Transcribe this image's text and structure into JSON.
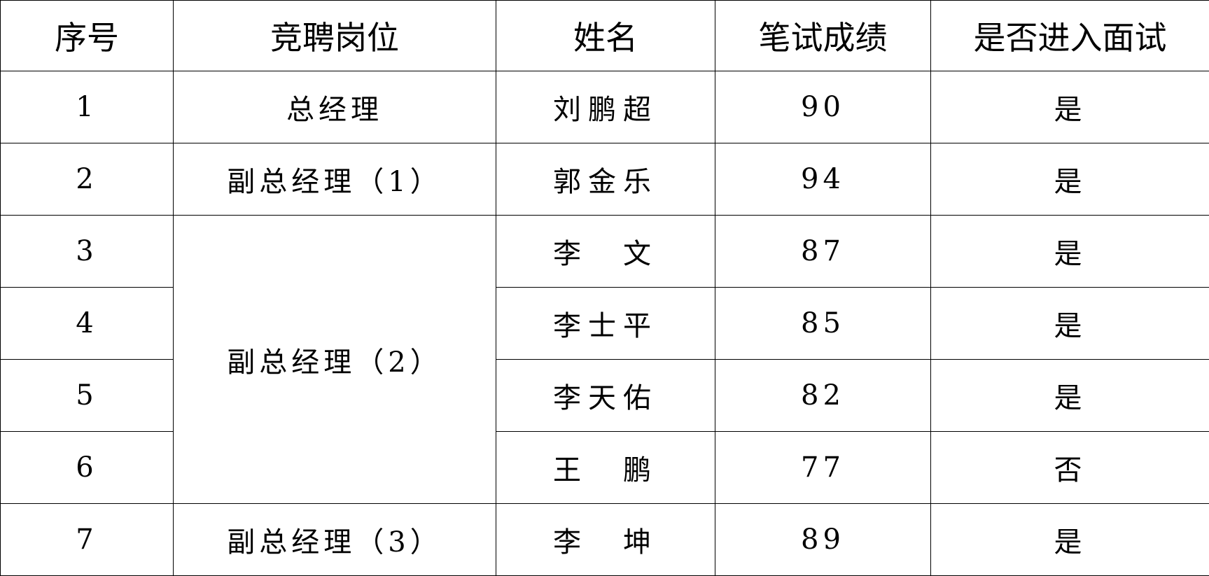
{
  "headers": [
    "序号",
    "竞聘岗位",
    "姓名",
    "笔试成绩",
    "是否进入面试"
  ],
  "rows": [
    {
      "no": "1",
      "position": "总经理",
      "name": "刘鹏超",
      "score": "90",
      "interview": "是"
    },
    {
      "no": "2",
      "position": "副总经理（1）",
      "name": "郭金乐",
      "score": "94",
      "interview": "是"
    },
    {
      "no": "3",
      "position": "副总经理（2）",
      "name": "李　文",
      "score": "87",
      "interview": "是"
    },
    {
      "no": "4",
      "position": "副总经理（2）",
      "name": "李士平",
      "score": "85",
      "interview": "是"
    },
    {
      "no": "5",
      "position": "副总经理（2）",
      "name": "李天佑",
      "score": "82",
      "interview": "是"
    },
    {
      "no": "6",
      "position": "副总经理（2）",
      "name": "王　鹏",
      "score": "77",
      "interview": "否"
    },
    {
      "no": "7",
      "position": "副总经理（3）",
      "name": "李　坤",
      "score": "89",
      "interview": "是"
    }
  ]
}
